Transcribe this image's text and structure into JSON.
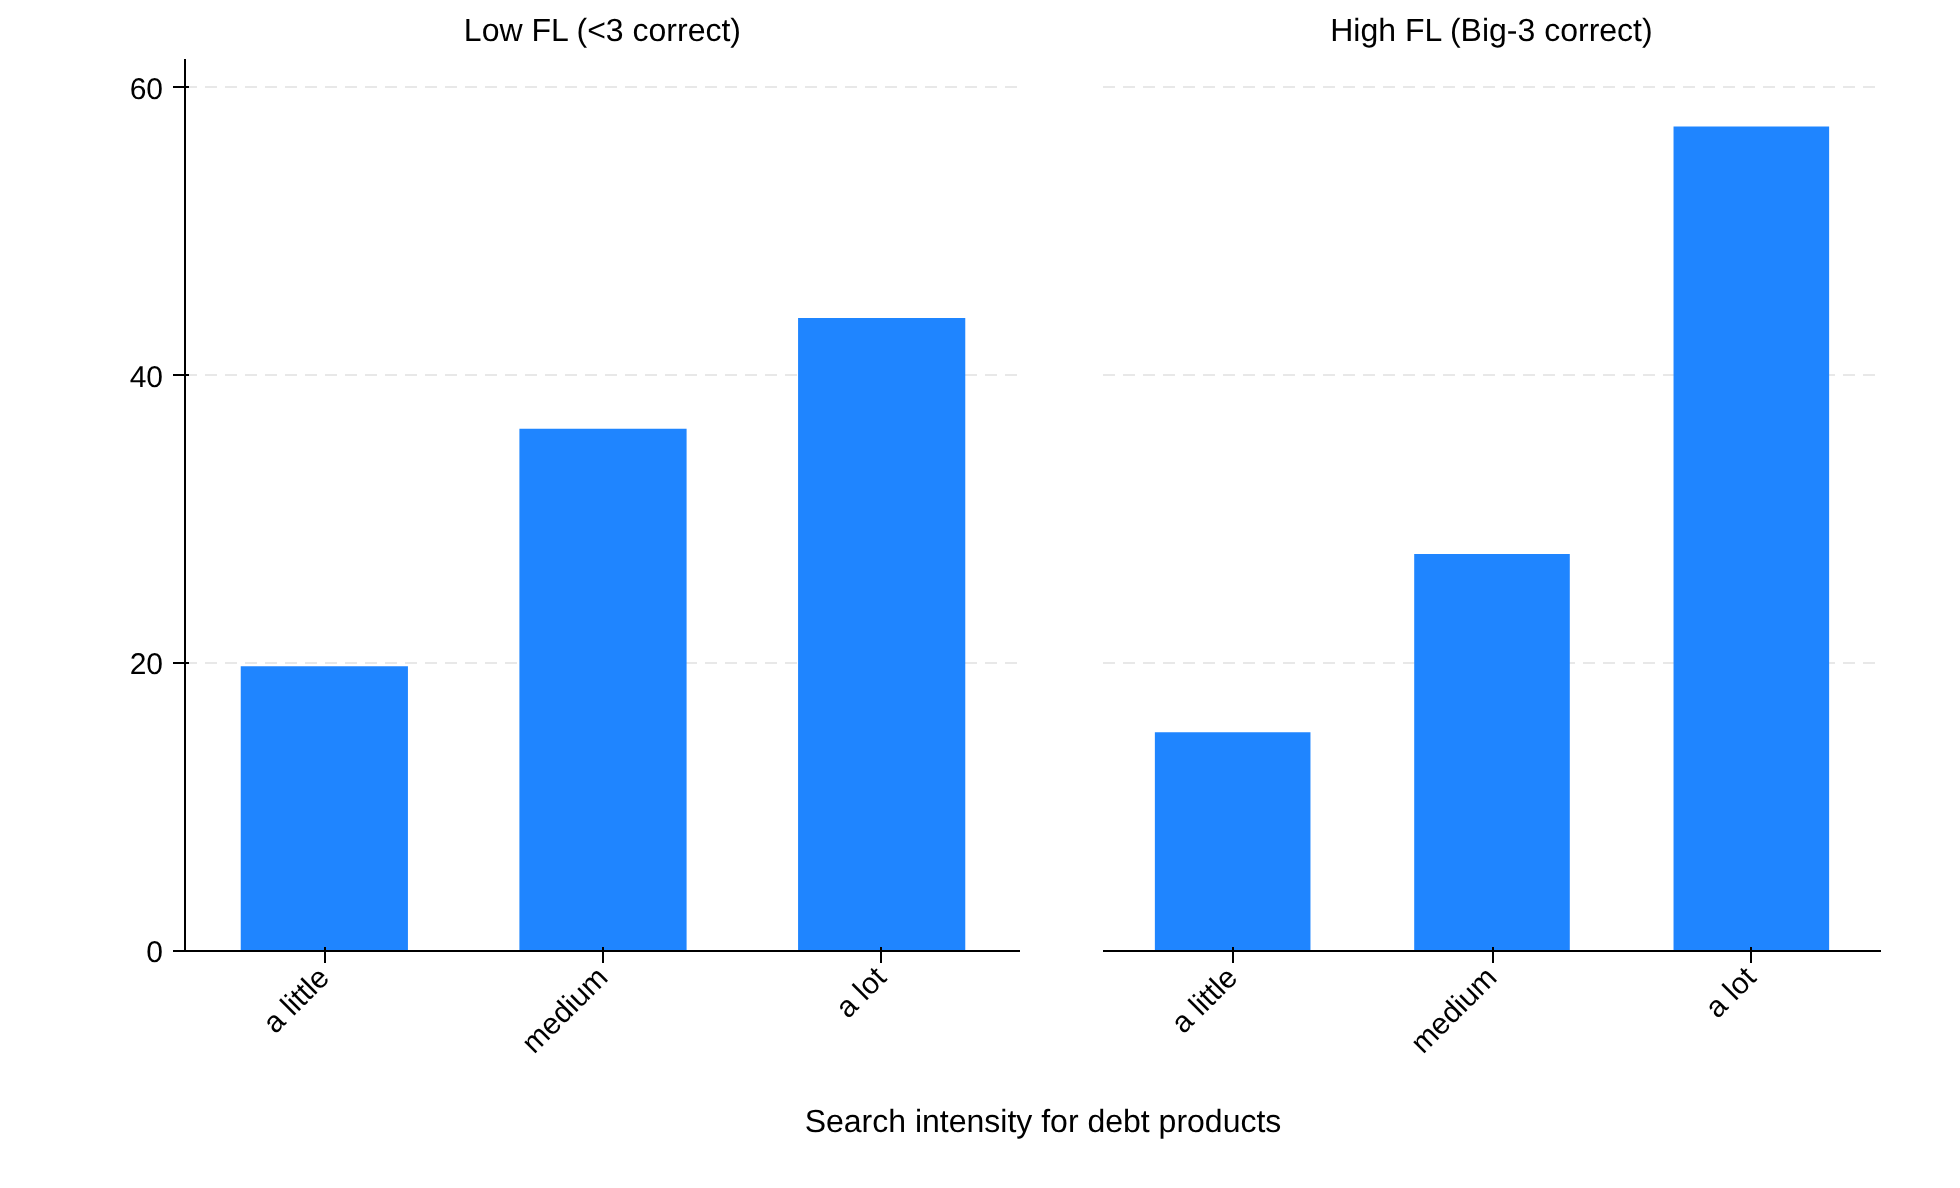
{
  "chart_data": [
    {
      "type": "bar",
      "title": "Low FL (<3 correct)",
      "xlabel": "Search intensity for debt products",
      "categories": [
        "a little",
        "medium",
        "a lot"
      ],
      "values": [
        19.8,
        36.3,
        44
      ],
      "color": "#1f85ff",
      "ylim": [
        0,
        62
      ],
      "yticks": [
        0,
        20,
        40,
        60
      ],
      "grid": "y"
    },
    {
      "type": "bar",
      "title": "High FL (Big-3 correct)",
      "categories": [
        "a little",
        "medium",
        "a lot"
      ],
      "values": [
        15.2,
        27.6,
        57.3
      ],
      "color": "#1f85ff",
      "yticks": [
        0,
        20,
        40,
        60
      ],
      "grid": "y",
      "tick_labels": "x"
    }
  ]
}
